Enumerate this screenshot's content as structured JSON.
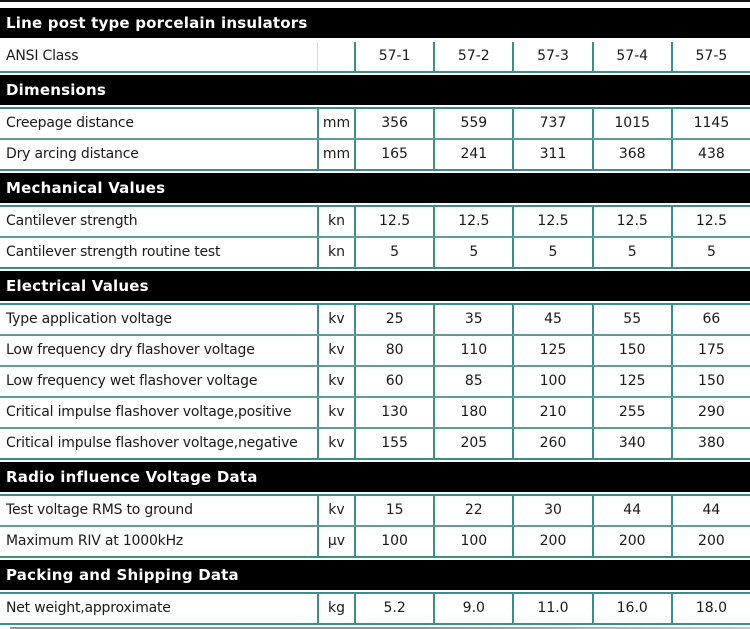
{
  "title": "Line post type porcelain insulators",
  "ansi_row": {
    "label": "ANSI Class",
    "unit": "",
    "values": [
      "57-1",
      "57-2",
      "57-3",
      "57-4",
      "57-5"
    ]
  },
  "sections": [
    {
      "header": "Dimensions",
      "rows": [
        {
          "label": "Creepage distance",
          "unit": "mm",
          "values": [
            "356",
            "559",
            "737",
            "1015",
            "1145"
          ]
        },
        {
          "label": "Dry arcing distance",
          "unit": "mm",
          "values": [
            "165",
            "241",
            "311",
            "368",
            "438"
          ]
        }
      ]
    },
    {
      "header": "Mechanical Values",
      "rows": [
        {
          "label": "Cantilever strength",
          "unit": "kn",
          "values": [
            "12.5",
            "12.5",
            "12.5",
            "12.5",
            "12.5"
          ]
        },
        {
          "label": "Cantilever strength routine test",
          "unit": "kn",
          "values": [
            "5",
            "5",
            "5",
            "5",
            "5"
          ]
        }
      ]
    },
    {
      "header": "Electrical Values",
      "rows": [
        {
          "label": "Type application voltage",
          "unit": "kv",
          "values": [
            "25",
            "35",
            "45",
            "55",
            "66"
          ]
        },
        {
          "label": "Low frequency dry flashover voltage",
          "unit": "kv",
          "values": [
            "80",
            "110",
            "125",
            "150",
            "175"
          ]
        },
        {
          "label": "Low frequency wet flashover voltage",
          "unit": "kv",
          "values": [
            "60",
            "85",
            "100",
            "125",
            "150"
          ]
        },
        {
          "label": "Critical impulse flashover voltage,positive",
          "unit": "kv",
          "values": [
            "130",
            "180",
            "210",
            "255",
            "290"
          ]
        },
        {
          "label": "Critical impulse flashover voltage,negative",
          "unit": "kv",
          "values": [
            "155",
            "205",
            "260",
            "340",
            "380"
          ]
        }
      ]
    },
    {
      "header": "Radio influence Voltage Data",
      "rows": [
        {
          "label": "Test voltage RMS to ground",
          "unit": "kv",
          "values": [
            "15",
            "22",
            "30",
            "44",
            "44"
          ]
        },
        {
          "label": "Maximum RIV at 1000kHz",
          "unit": "μv",
          "values": [
            "100",
            "100",
            "200",
            "200",
            "200"
          ]
        }
      ]
    },
    {
      "header": "Packing and Shipping Data",
      "rows": [
        {
          "label": "Net weight,approximate",
          "unit": "kg",
          "values": [
            "5.2",
            "9.0",
            "11.0",
            "16.0",
            "18.0"
          ]
        }
      ]
    }
  ],
  "colors": {
    "accent_border": "#3e8d88",
    "section_bar_bg": "#000000",
    "section_bar_text": "#ffffff"
  }
}
